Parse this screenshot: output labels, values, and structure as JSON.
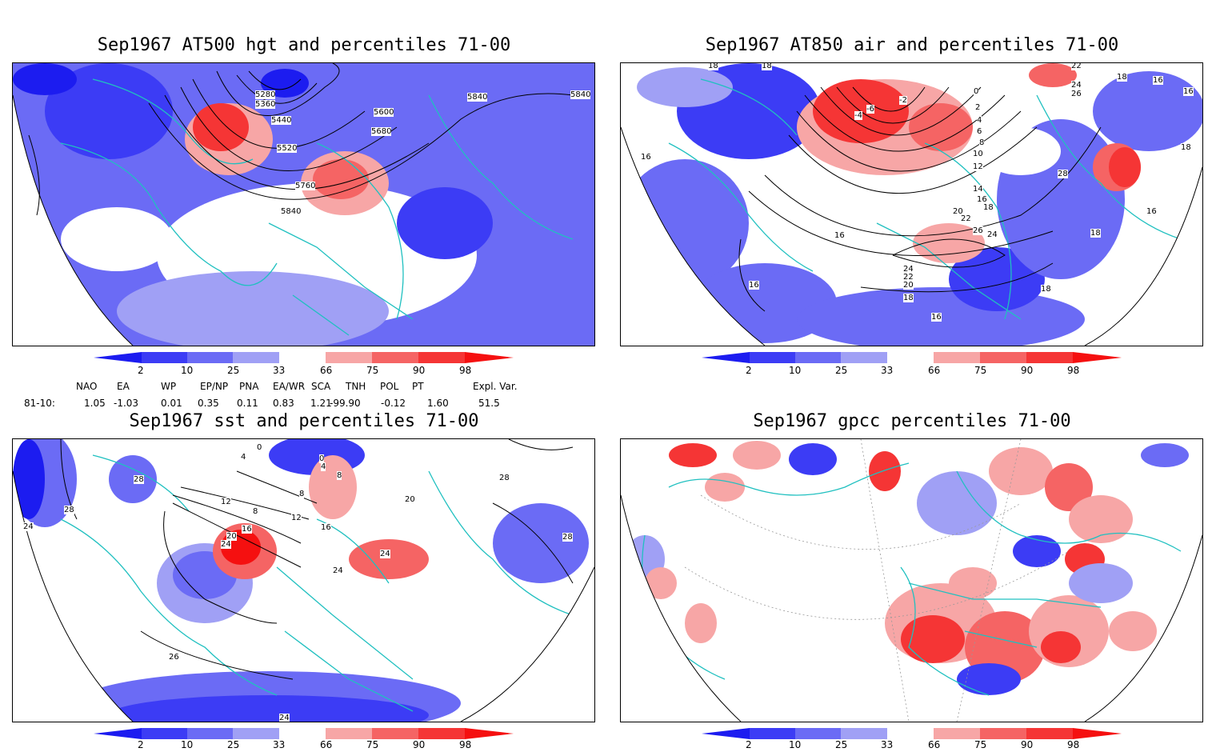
{
  "panels": [
    {
      "id": "p1",
      "title": "Sep1967 AT500 hgt and percentiles 71-00",
      "contour_labels": [
        "5280",
        "5360",
        "5440",
        "5520",
        "5600",
        "5680",
        "5760",
        "5840",
        "5840",
        "5840"
      ]
    },
    {
      "id": "p2",
      "title": "Sep1967 AT850 air and percentiles 71-00",
      "contour_labels": [
        "18",
        "18",
        "16",
        "-6",
        "-4",
        "-2",
        "0",
        "2",
        "4",
        "6",
        "8",
        "10",
        "12",
        "14",
        "16",
        "18",
        "20",
        "22",
        "24",
        "26",
        "16",
        "16",
        "22",
        "24",
        "26",
        "18",
        "16",
        "28",
        "18",
        "16",
        "18",
        "24",
        "22",
        "20",
        "18",
        "16",
        "16",
        "18"
      ]
    },
    {
      "id": "p3",
      "title": "Sep1967 sst and percentiles 71-00",
      "contour_labels": [
        "28",
        "24",
        "28",
        "4",
        "0",
        "0",
        "4",
        "8",
        "12",
        "8",
        "8",
        "12",
        "16",
        "20",
        "24",
        "16",
        "20",
        "24",
        "24",
        "28",
        "28",
        "26",
        "24"
      ]
    },
    {
      "id": "p4",
      "title": "Sep1967 gpcc percentiles 71-00",
      "contour_labels": []
    }
  ],
  "colorbar": {
    "tick_labels": [
      "2",
      "10",
      "25",
      "33",
      "66",
      "75",
      "90",
      "98"
    ],
    "colors": {
      "c1": "#1c1cf0",
      "c2": "#3c3cf5",
      "c3": "#6b6bf5",
      "c4": "#a0a0f5",
      "white": "#ffffff",
      "w1": "#f7a6a6",
      "w2": "#f56464",
      "w3": "#f53535",
      "w4": "#f51010"
    }
  },
  "indices": {
    "headers": [
      "NAO",
      "EA",
      "WP",
      "EP/NP",
      "PNA",
      "EA/WR",
      "SCA",
      "TNH",
      "POL",
      "PT",
      "Expl. Var."
    ],
    "row_label": "81-10:",
    "values": [
      "1.05",
      "-1.03",
      "0.01",
      "0.35",
      "0.11",
      "0.83",
      "1.21",
      "-99.90",
      "-0.12",
      "1.60",
      "51.5"
    ]
  },
  "map_colors": {
    "coast": "#20c0c0",
    "contour": "#000000",
    "graticule": "#999999"
  }
}
